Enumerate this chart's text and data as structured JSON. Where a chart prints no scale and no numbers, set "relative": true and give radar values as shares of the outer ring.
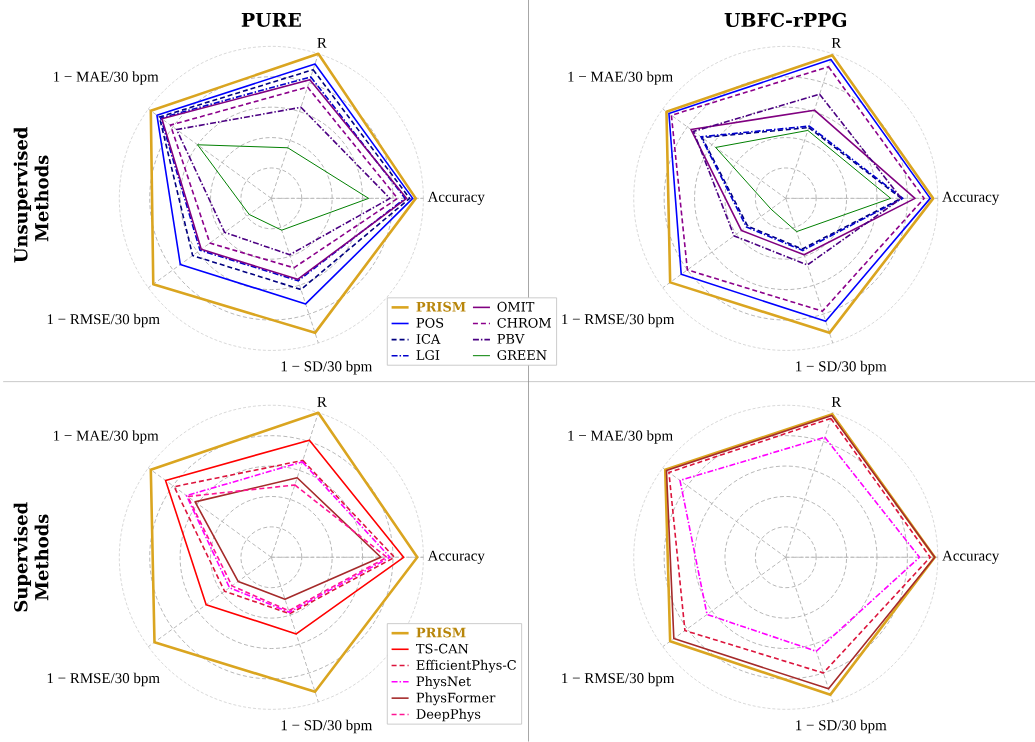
{
  "chart_data": [
    {
      "type": "radar",
      "title": "PURE",
      "ylabel": "Unsupervised Methods",
      "categories": [
        "R",
        "Accuracy",
        "1 − SD/30 bpm",
        "1 − RMSE/30 bpm",
        "1 − MAE/30 bpm"
      ],
      "relative": true,
      "grid": true,
      "legend": "bottom right",
      "series": [
        {
          "name": "PRISM",
          "color": "#daa520",
          "line_style": "solid",
          "values": [
            1.0,
            0.95,
            0.93,
            0.96,
            0.98
          ]
        },
        {
          "name": "POS",
          "color": "#0000ff",
          "line_style": "solid",
          "values": [
            0.93,
            0.93,
            0.73,
            0.74,
            0.93
          ]
        },
        {
          "name": "ICA",
          "color": "#000080",
          "line_style": "dashed",
          "values": [
            0.89,
            0.91,
            0.63,
            0.64,
            0.91
          ]
        },
        {
          "name": "LGI",
          "color": "#0000cd",
          "line_style": "dashdot",
          "values": [
            0.84,
            0.88,
            0.57,
            0.58,
            0.9
          ]
        },
        {
          "name": "OMIT",
          "color": "#800080",
          "line_style": "solid",
          "values": [
            0.82,
            0.89,
            0.56,
            0.57,
            0.89
          ]
        },
        {
          "name": "CHROM",
          "color": "#8b008b",
          "line_style": "dashed",
          "values": [
            0.77,
            0.83,
            0.48,
            0.5,
            0.82
          ]
        },
        {
          "name": "PBV",
          "color": "#4b0082",
          "line_style": "dashdot",
          "values": [
            0.63,
            0.78,
            0.39,
            0.38,
            0.77
          ]
        },
        {
          "name": "GREEN",
          "color": "#008000",
          "line_style": "solid",
          "values": [
            0.35,
            0.64,
            0.22,
            0.18,
            0.6
          ]
        }
      ]
    },
    {
      "type": "radar",
      "title": "UBFC-rPPG",
      "categories": [
        "R",
        "Accuracy",
        "1 − SD/30 bpm",
        "1 − RMSE/30 bpm",
        "1 − MAE/30 bpm"
      ],
      "relative": true,
      "grid": true,
      "series": [
        {
          "color": "#daa520",
          "line_style": "solid",
          "values": [
            0.99,
            0.97,
            0.93,
            0.94,
            0.97
          ]
        },
        {
          "color": "#0000ff",
          "line_style": "solid",
          "values": [
            0.96,
            0.95,
            0.85,
            0.85,
            0.95
          ]
        },
        {
          "color": "#000080",
          "line_style": "dashed",
          "values": [
            0.49,
            0.76,
            0.35,
            0.31,
            0.68
          ]
        },
        {
          "color": "#0000cd",
          "line_style": "dashdot",
          "values": [
            0.5,
            0.77,
            0.36,
            0.32,
            0.69
          ]
        },
        {
          "color": "#800080",
          "line_style": "solid",
          "values": [
            0.61,
            0.85,
            0.39,
            0.36,
            0.77
          ]
        },
        {
          "color": "#8b008b",
          "line_style": "dashed",
          "values": [
            0.91,
            0.91,
            0.78,
            0.8,
            0.93
          ]
        },
        {
          "color": "#4b0082",
          "line_style": "dashdot",
          "values": [
            0.72,
            0.76,
            0.46,
            0.42,
            0.75
          ]
        },
        {
          "color": "#008000",
          "line_style": "solid",
          "values": [
            0.47,
            0.69,
            0.23,
            0.12,
            0.57
          ]
        }
      ]
    },
    {
      "type": "radar",
      "ylabel": "Supervised Methods",
      "categories": [
        "R",
        "Accuracy",
        "1 − SD/30 bpm",
        "1 − RMSE/30 bpm",
        "1 − MAE/30 bpm"
      ],
      "relative": true,
      "grid": true,
      "legend": "bottom right",
      "series": [
        {
          "name": "PRISM",
          "color": "#daa520",
          "line_style": "solid",
          "values": [
            1.0,
            0.96,
            0.93,
            0.95,
            0.98
          ]
        },
        {
          "name": "TS-CAN",
          "color": "#ff0000",
          "line_style": "solid",
          "values": [
            0.81,
            0.87,
            0.53,
            0.53,
            0.86
          ]
        },
        {
          "name": "EfficientPhys-C",
          "color": "#dc143c",
          "line_style": "dashed",
          "values": [
            0.67,
            0.81,
            0.39,
            0.38,
            0.79
          ]
        },
        {
          "name": "PhysNet",
          "color": "#ff00ff",
          "line_style": "dashdot",
          "values": [
            0.66,
            0.78,
            0.38,
            0.34,
            0.69
          ]
        },
        {
          "name": "PhysFormer",
          "color": "#a52a2a",
          "line_style": "solid",
          "values": [
            0.55,
            0.72,
            0.29,
            0.27,
            0.62
          ]
        },
        {
          "name": "DeepPhys",
          "color": "#ff1493",
          "line_style": "dashed",
          "values": [
            0.5,
            0.76,
            0.37,
            0.32,
            0.68
          ]
        }
      ]
    },
    {
      "type": "radar",
      "categories": [
        "R",
        "Accuracy",
        "1 − SD/30 bpm",
        "1 − RMSE/30 bpm",
        "1 − MAE/30 bpm"
      ],
      "relative": true,
      "grid": true,
      "series": [
        {
          "color": "#daa520",
          "line_style": "solid",
          "values": [
            0.99,
            0.98,
            0.95,
            0.94,
            0.98
          ]
        },
        {
          "color": "#dc143c",
          "line_style": "dashed",
          "values": [
            0.96,
            0.95,
            0.8,
            0.82,
            0.95
          ]
        },
        {
          "color": "#ff00ff",
          "line_style": "dashdot",
          "values": [
            0.83,
            0.88,
            0.65,
            0.64,
            0.86
          ]
        },
        {
          "color": "#a52a2a",
          "line_style": "solid",
          "values": [
            0.98,
            0.98,
            0.91,
            0.91,
            0.97
          ]
        }
      ]
    }
  ]
}
